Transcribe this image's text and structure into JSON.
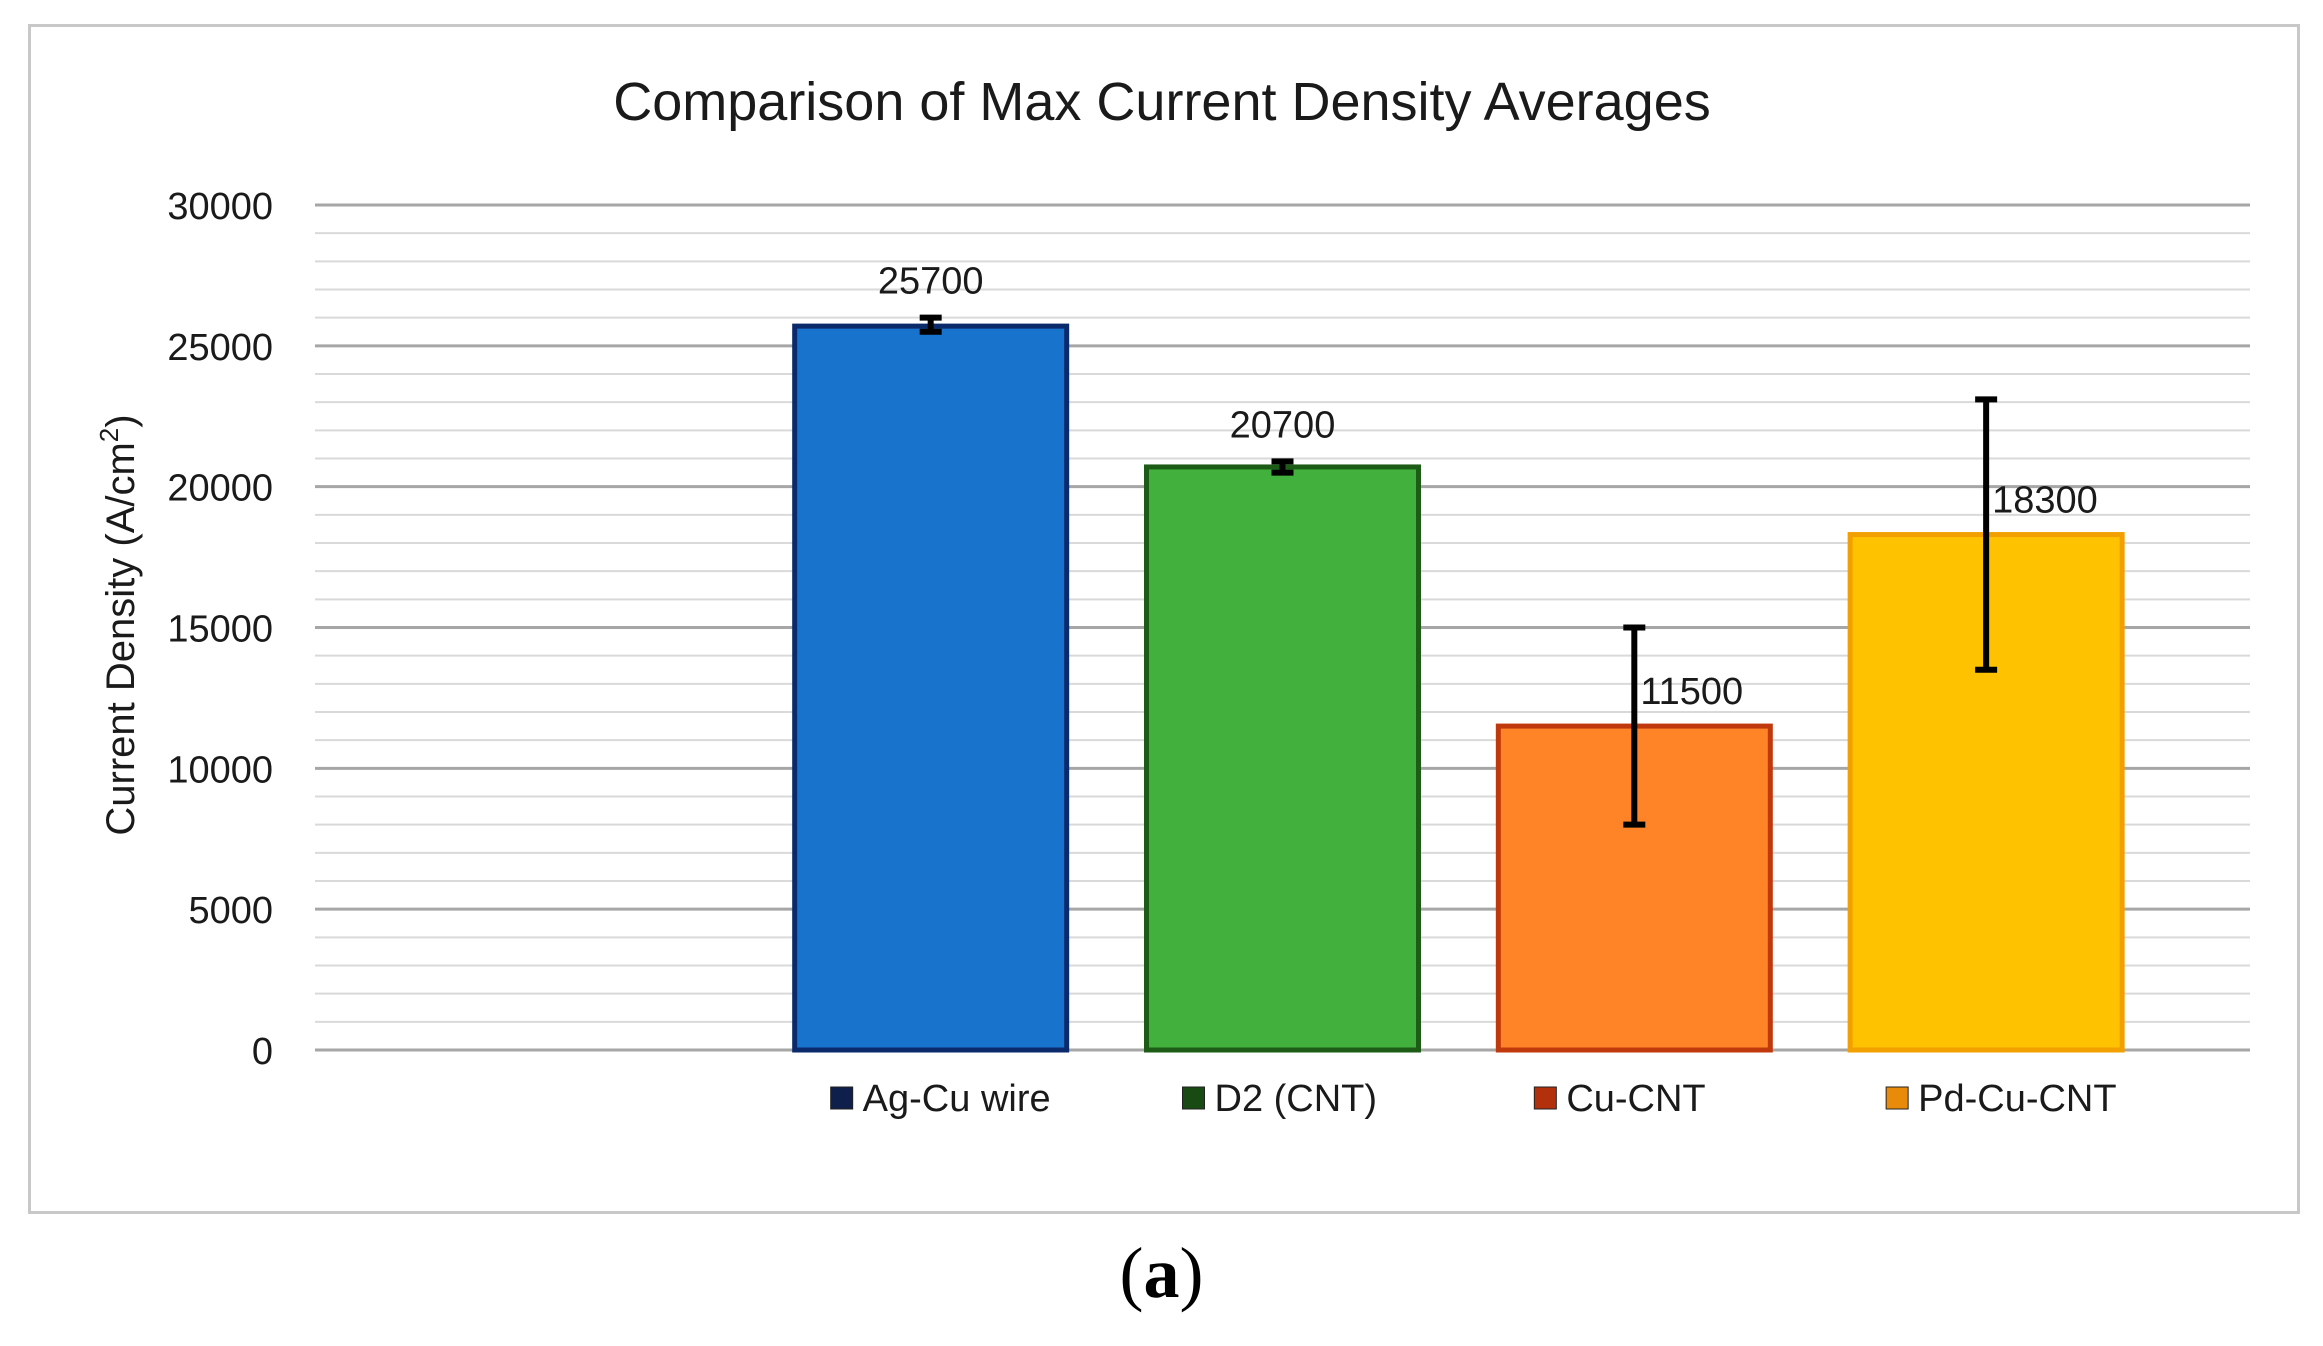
{
  "chart_data": {
    "type": "bar",
    "title": "Comparison of Max Current Density Averages",
    "ylabel": "Current Density (A/cm",
    "ylabel_sup": "2",
    "ylabel_close": ")",
    "xlabel": "",
    "ylim": [
      0,
      30000
    ],
    "yticks": [
      0,
      5000,
      10000,
      15000,
      20000,
      25000,
      30000
    ],
    "grid": true,
    "legend_position": "bottom",
    "categories": [
      "Ag-Cu wire",
      "D2 (CNT)",
      "Cu-CNT",
      "Pd-Cu-CNT"
    ],
    "values": [
      25700,
      20700,
      11500,
      18300
    ],
    "data_labels": [
      "25700",
      "20700",
      "11500",
      "18300"
    ],
    "error_low": [
      25500,
      20500,
      8000,
      13500
    ],
    "error_high": [
      26000,
      20900,
      15000,
      23100
    ],
    "colors": [
      "#1873cc",
      "#42b03d",
      "#ff8427",
      "#ffc200"
    ],
    "edge_colors": [
      "#0b2a6b",
      "#1d5c17",
      "#c0390c",
      "#f2a000"
    ],
    "legend_swatch_colors": [
      "#0d1f4a",
      "#1a4a14",
      "#b3300d",
      "#e88a0a"
    ]
  },
  "caption": {
    "open": "(",
    "letter": "a",
    "close": ")"
  }
}
